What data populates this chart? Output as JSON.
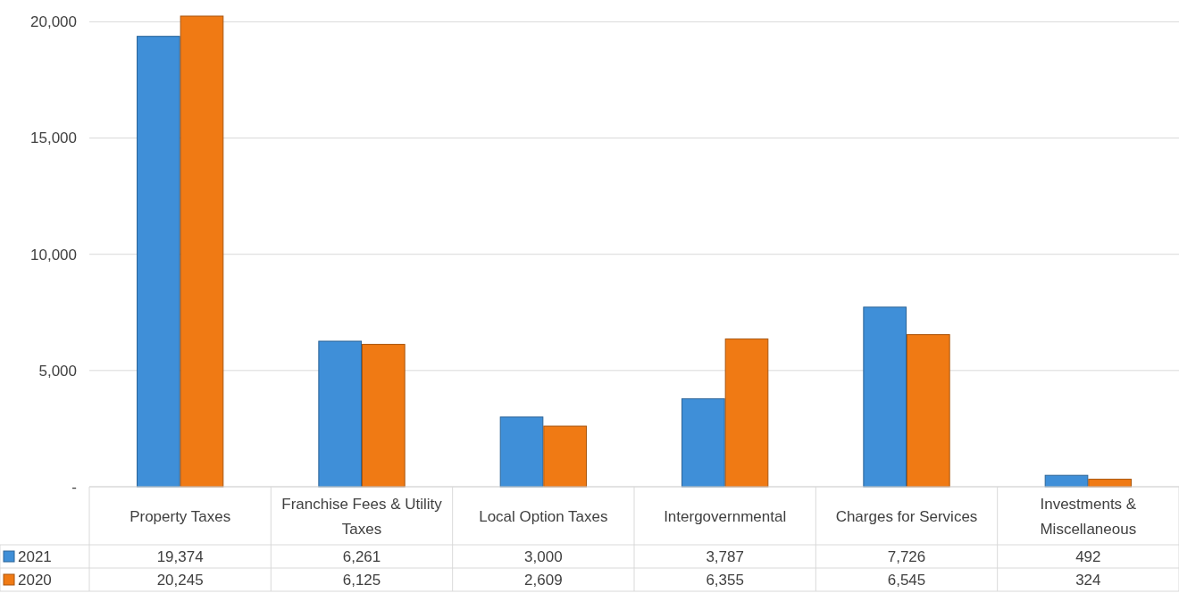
{
  "chart_data": {
    "type": "bar",
    "categories": [
      "Property Taxes",
      "Franchise Fees & Utility Taxes",
      "Local Option Taxes",
      "Intergovernmental",
      "Charges for Services",
      "Investments & Miscellaneous"
    ],
    "series": [
      {
        "name": "2021",
        "color": "#3f8fd8",
        "values": [
          19374,
          6261,
          3000,
          3787,
          7726,
          492
        ],
        "value_labels": [
          "19,374",
          "6,261",
          "3,000",
          "3,787",
          "7,726",
          "492"
        ]
      },
      {
        "name": "2020",
        "color": "#f07a14",
        "values": [
          20245,
          6125,
          2609,
          6355,
          6545,
          324
        ],
        "value_labels": [
          "20,245",
          "6,125",
          "2,609",
          "6,355",
          "6,545",
          "324"
        ]
      }
    ],
    "ylim": [
      0,
      20245
    ],
    "yticks": [
      {
        "value": 0,
        "label": "-"
      },
      {
        "value": 5000,
        "label": "5,000"
      },
      {
        "value": 10000,
        "label": "10,000"
      },
      {
        "value": 15000,
        "label": "15,000"
      },
      {
        "value": 20000,
        "label": "20,000"
      }
    ],
    "grid": "y",
    "legend": "bottom left"
  }
}
